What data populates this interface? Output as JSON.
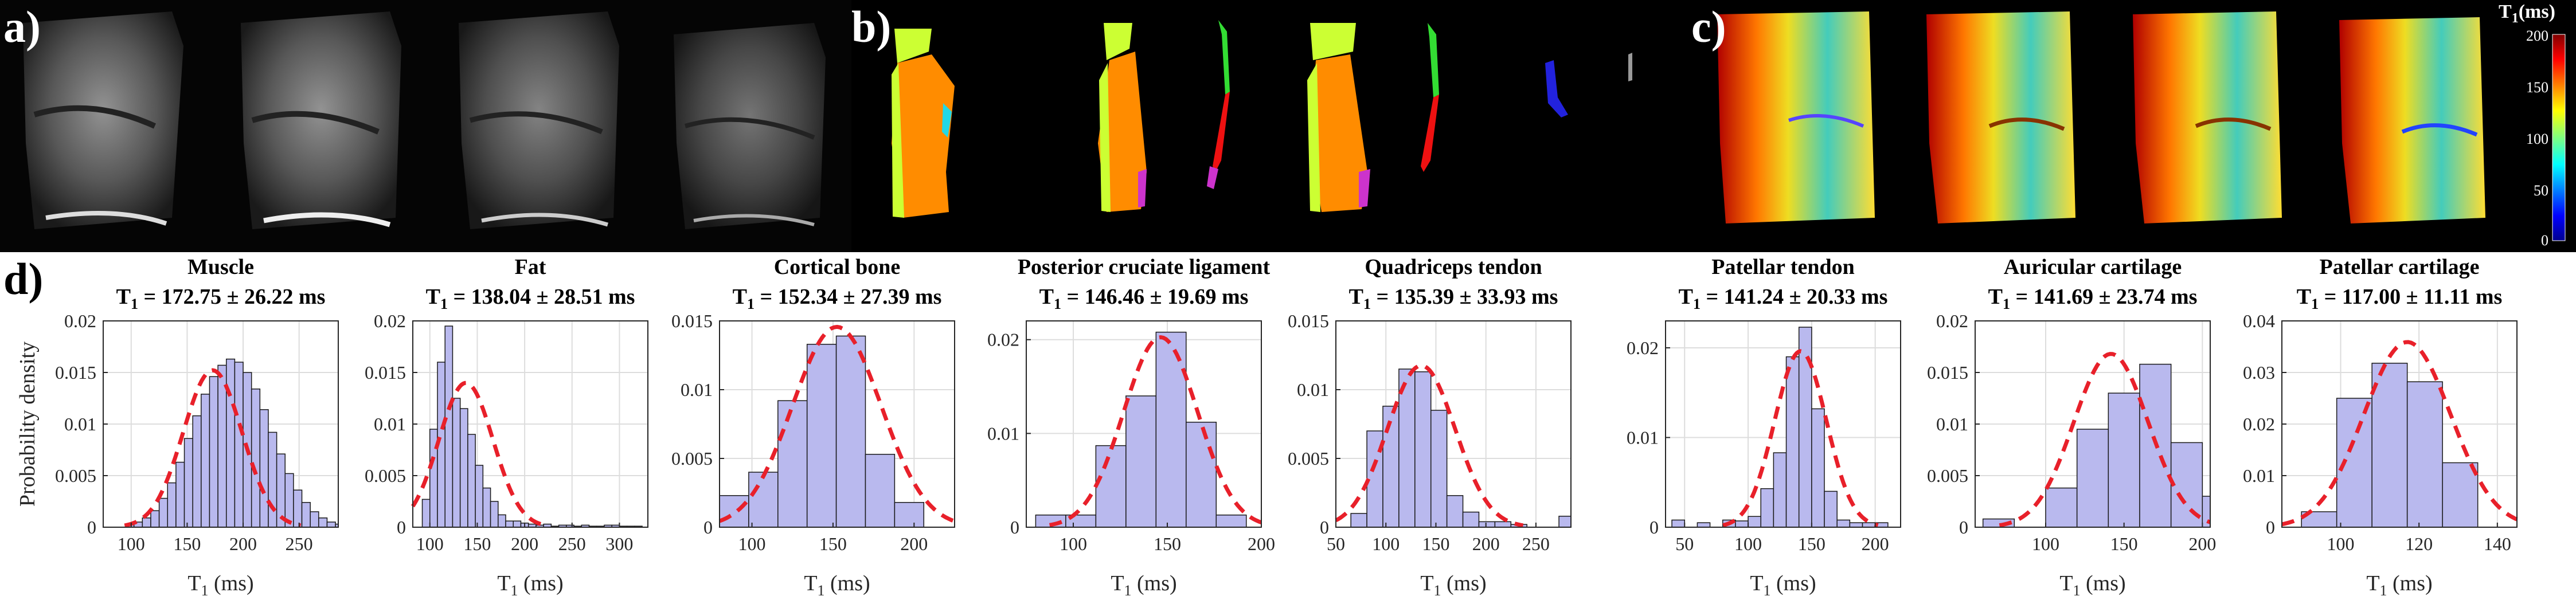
{
  "panels": {
    "a": "a)",
    "b": "b)",
    "c": "c)",
    "d": "d)"
  },
  "colorbar": {
    "title_main": "T",
    "title_sub": "1",
    "title_unit": "(ms)",
    "ticks": [
      "200",
      "150",
      "100",
      "50",
      "0"
    ],
    "range": [
      0,
      200
    ]
  },
  "ylabel": "Probability density",
  "xlabel_main": "T",
  "xlabel_sub": "1",
  "xlabel_unit": " (ms)",
  "colors": {
    "bar_fill": "#b9b9ee",
    "bar_stroke": "#1a1a1a",
    "fit_line": "#e8202a",
    "grid": "#dddddd"
  },
  "chart_data": [
    {
      "type": "bar",
      "title": "Muscle",
      "stat_prefix": "T",
      "stat_sub": "1",
      "stat": " = 172.75 ± 26.22 ms",
      "xlim": [
        75,
        285
      ],
      "ylim": [
        0,
        0.02
      ],
      "xticks": [
        100,
        150,
        200,
        250
      ],
      "yticks": [
        0,
        0.005,
        0.01,
        0.015,
        0.02
      ],
      "yticklabels": [
        "0",
        "0.005",
        "0.01",
        "0.015",
        "0.02"
      ],
      "bin_start": 95,
      "bin_width": 7.5,
      "values": [
        0.0003,
        0.0005,
        0.0009,
        0.0016,
        0.0028,
        0.0043,
        0.0063,
        0.0086,
        0.0108,
        0.0129,
        0.0146,
        0.0157,
        0.0163,
        0.016,
        0.015,
        0.0134,
        0.0114,
        0.0092,
        0.0071,
        0.0052,
        0.0036,
        0.0024,
        0.0015,
        0.0009,
        0.0005,
        0.0003
      ],
      "fit_mean": 172.75,
      "fit_sd": 26.22
    },
    {
      "type": "bar",
      "title": "Fat",
      "stat_prefix": "T",
      "stat_sub": "1",
      "stat": " = 138.04 ± 28.51 ms",
      "xlim": [
        82,
        330
      ],
      "ylim": [
        0,
        0.02
      ],
      "xticks": [
        100,
        150,
        200,
        250,
        300
      ],
      "yticks": [
        0,
        0.005,
        0.01,
        0.015,
        0.02
      ],
      "yticklabels": [
        "0",
        "0.005",
        "0.01",
        "0.015",
        "0.02"
      ],
      "bin_start": 92,
      "bin_width": 8,
      "values": [
        0.0027,
        0.0095,
        0.016,
        0.0195,
        0.0125,
        0.0115,
        0.009,
        0.006,
        0.0038,
        0.0025,
        0.0012,
        0.0006,
        0.0006,
        0.0004,
        0.0003,
        0.0002,
        0.0003,
        0.0001,
        0.0002,
        0.0002,
        0.0001,
        0.0002,
        0.0001,
        0.0001,
        0.0002,
        0.0002,
        0.0001,
        0.0001,
        0.0001
      ],
      "fit_mean": 138.04,
      "fit_sd": 28.51
    },
    {
      "type": "bar",
      "title": "Cortical bone",
      "stat_prefix": "T",
      "stat_sub": "1",
      "stat": " = 152.34 ± 27.39 ms",
      "xlim": [
        80,
        225
      ],
      "ylim": [
        0,
        0.015
      ],
      "xticks": [
        100,
        150,
        200
      ],
      "yticks": [
        0,
        0.005,
        0.01,
        0.015
      ],
      "yticklabels": [
        "0",
        "0.005",
        "0.01",
        "0.015"
      ],
      "bin_start": 80,
      "bin_width": 18,
      "values": [
        0.0023,
        0.004,
        0.0092,
        0.0133,
        0.0139,
        0.0053,
        0.0018
      ],
      "fit_mean": 152.34,
      "fit_sd": 27.39
    },
    {
      "type": "bar",
      "title": "Posterior cruciate ligament",
      "stat_prefix": "T",
      "stat_sub": "1",
      "stat": " = 146.46 ± 19.69 ms",
      "xlim": [
        75,
        200
      ],
      "ylim": [
        0,
        0.022
      ],
      "xticks": [
        100,
        150,
        200
      ],
      "yticks": [
        0,
        0.01,
        0.02
      ],
      "yticklabels": [
        "0",
        "0.01",
        "0.02"
      ],
      "bin_start": 80,
      "bin_width": 16,
      "values": [
        0.0013,
        0.0013,
        0.0087,
        0.014,
        0.0208,
        0.0112,
        0.0013
      ],
      "fit_mean": 146.46,
      "fit_sd": 19.69
    },
    {
      "type": "bar",
      "title": "Quadriceps tendon",
      "stat_prefix": "T",
      "stat_sub": "1",
      "stat": " = 135.39 ± 33.93 ms",
      "xlim": [
        50,
        285
      ],
      "ylim": [
        0,
        0.015
      ],
      "xticks": [
        50,
        100,
        150,
        200,
        250
      ],
      "yticks": [
        0,
        0.005,
        0.01,
        0.015
      ],
      "yticklabels": [
        "0",
        "0.005",
        "0.01",
        "0.015"
      ],
      "bin_start": 65,
      "bin_width": 16,
      "values": [
        0.001,
        0.007,
        0.0088,
        0.0115,
        0.0113,
        0.0085,
        0.0023,
        0.0011,
        0.0004,
        0.0004,
        0.0002,
        0.0,
        0.0,
        0.0008
      ],
      "fit_mean": 135.39,
      "fit_sd": 33.93
    },
    {
      "type": "bar",
      "title": "Patellar tendon",
      "stat_prefix": "T",
      "stat_sub": "1",
      "stat": " = 141.24 ± 20.33 ms",
      "xlim": [
        35,
        220
      ],
      "ylim": [
        0,
        0.023
      ],
      "xticks": [
        50,
        100,
        150,
        200
      ],
      "yticks": [
        0,
        0.01,
        0.02
      ],
      "yticklabels": [
        "0",
        "0.01",
        "0.02"
      ],
      "bin_start": 40,
      "bin_width": 10,
      "values": [
        0.0008,
        0.0,
        0.0005,
        0.0,
        0.0008,
        0.0007,
        0.0012,
        0.0043,
        0.0083,
        0.019,
        0.0223,
        0.0132,
        0.004,
        0.0008,
        0.0005,
        0.0005,
        0.0005
      ],
      "fit_mean": 141.24,
      "fit_sd": 20.33
    },
    {
      "type": "bar",
      "title": "Auricular cartilage",
      "stat_prefix": "T",
      "stat_sub": "1",
      "stat": " = 141.69 ± 23.74 ms",
      "xlim": [
        55,
        205
      ],
      "ylim": [
        0,
        0.02
      ],
      "xticks": [
        100,
        150,
        200
      ],
      "yticks": [
        0,
        0.005,
        0.01,
        0.015,
        0.02
      ],
      "yticklabels": [
        "0",
        "0.005",
        "0.01",
        "0.015",
        "0.02"
      ],
      "bin_start": 60,
      "bin_width": 20,
      "values": [
        0.0008,
        0.0,
        0.0038,
        0.0095,
        0.013,
        0.0158,
        0.0082,
        0.003
      ],
      "fit_mean": 141.69,
      "fit_sd": 23.74
    },
    {
      "type": "bar",
      "title": "Patellar cartilage",
      "stat_prefix": "T",
      "stat_sub": "1",
      "stat": " = 117.00 ± 11.11 ms",
      "xlim": [
        85,
        145
      ],
      "ylim": [
        0,
        0.04
      ],
      "xticks": [
        100,
        120,
        140
      ],
      "yticks": [
        0,
        0.01,
        0.02,
        0.03,
        0.04
      ],
      "yticklabels": [
        "0",
        "0.01",
        "0.02",
        "0.03",
        "0.04"
      ],
      "bin_start": 90,
      "bin_width": 9,
      "values": [
        0.003,
        0.025,
        0.0318,
        0.0282,
        0.0125
      ],
      "fit_mean": 117.0,
      "fit_sd": 11.11
    }
  ]
}
